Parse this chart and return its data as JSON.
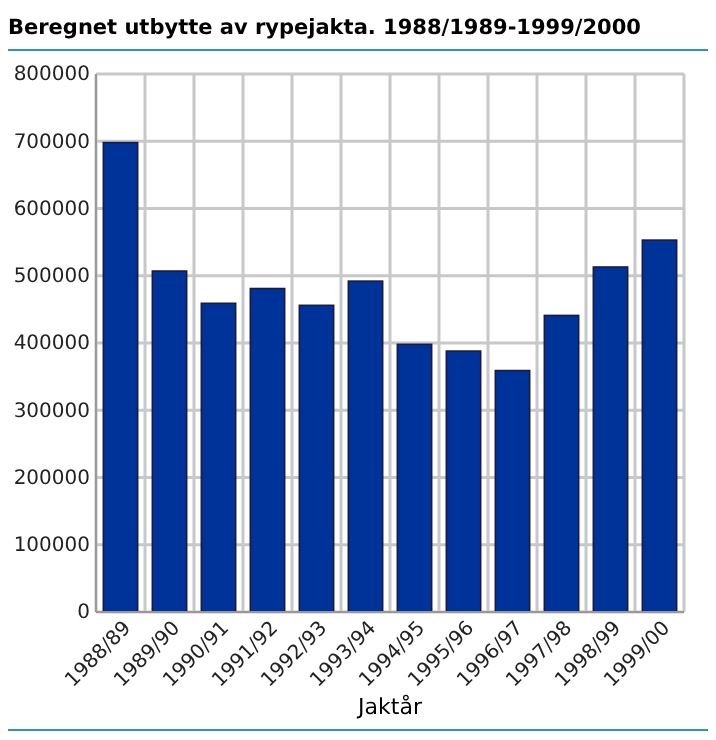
{
  "chart_data": {
    "type": "bar",
    "title": "Beregnet utbytte av rypejakta. 1988/1989-1999/2000",
    "xlabel": "Jaktår",
    "categories": [
      "1988/89",
      "1989/90",
      "1990/91",
      "1991/92",
      "1992/93",
      "1993/94",
      "1994/95",
      "1995/96",
      "1996/97",
      "1997/98",
      "1998/99",
      "1999/00"
    ],
    "values": [
      698000,
      507000,
      459000,
      481000,
      456000,
      492000,
      398000,
      388000,
      359000,
      441000,
      513000,
      553000
    ],
    "color": "#003399",
    "ylim": [
      0,
      800000
    ],
    "yticks": [
      0,
      100000,
      200000,
      300000,
      400000,
      500000,
      600000,
      700000,
      800000
    ],
    "grid": true
  }
}
